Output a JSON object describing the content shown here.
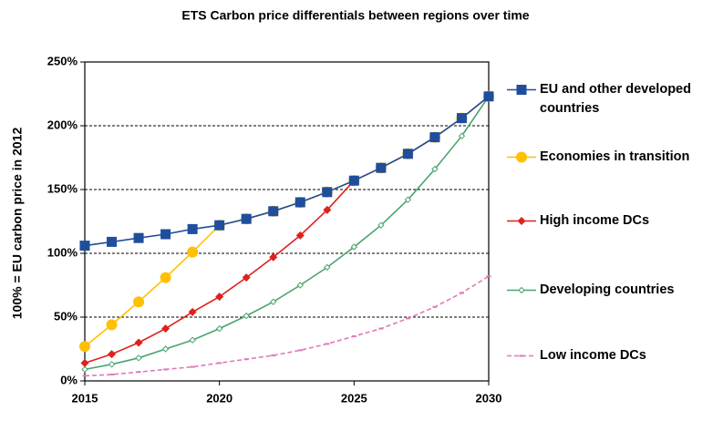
{
  "chart_data": {
    "type": "line",
    "title": "ETS Carbon price differentials between regions over time",
    "y_label": "100% = EU carbon price in 2012",
    "x": [
      2015,
      2016,
      2017,
      2018,
      2019,
      2020,
      2021,
      2022,
      2023,
      2024,
      2025,
      2026,
      2027,
      2028,
      2029,
      2030
    ],
    "xlim": [
      2015,
      2030
    ],
    "xticks": [
      2015,
      2020,
      2025,
      2030
    ],
    "ylim": [
      0,
      250
    ],
    "yticks": [
      {
        "value": 0,
        "label": "0%"
      },
      {
        "value": 50,
        "label": "50%"
      },
      {
        "value": 100,
        "label": "100%"
      },
      {
        "value": 150,
        "label": "150%"
      },
      {
        "value": 200,
        "label": "200%"
      },
      {
        "value": 250,
        "label": "250%"
      }
    ],
    "grid": true,
    "legend": "right",
    "series": [
      {
        "name": "EU and other developed countries",
        "color": "#1f4e9c",
        "marker": "square",
        "values": [
          106,
          109,
          112,
          115,
          119,
          122,
          127,
          133,
          140,
          148,
          157,
          167,
          178,
          191,
          206,
          223
        ]
      },
      {
        "name": "Economies in transition",
        "color": "#ffc000",
        "marker": "circle",
        "values": [
          27,
          44,
          62,
          81,
          101,
          122,
          127,
          133,
          140,
          148,
          157,
          167,
          178,
          191,
          206,
          223
        ]
      },
      {
        "name": "High income DCs",
        "color": "#e0201b",
        "marker": "diamond",
        "values": [
          14,
          21,
          30,
          41,
          54,
          66,
          81,
          97,
          114,
          134,
          157,
          167,
          178,
          191,
          206,
          223
        ]
      },
      {
        "name": "Developing countries",
        "color": "#4aa36e",
        "marker": "small-diamond",
        "values": [
          9,
          13,
          18,
          25,
          32,
          41,
          51,
          62,
          75,
          89,
          105,
          122,
          142,
          166,
          192,
          223
        ]
      },
      {
        "name": "Low income DCs",
        "color": "#e07ab8",
        "marker": "tick",
        "dashed": true,
        "values": [
          4,
          5,
          7,
          9,
          11,
          14,
          17,
          20,
          24,
          29,
          35,
          41,
          49,
          58,
          69,
          82
        ]
      }
    ]
  }
}
